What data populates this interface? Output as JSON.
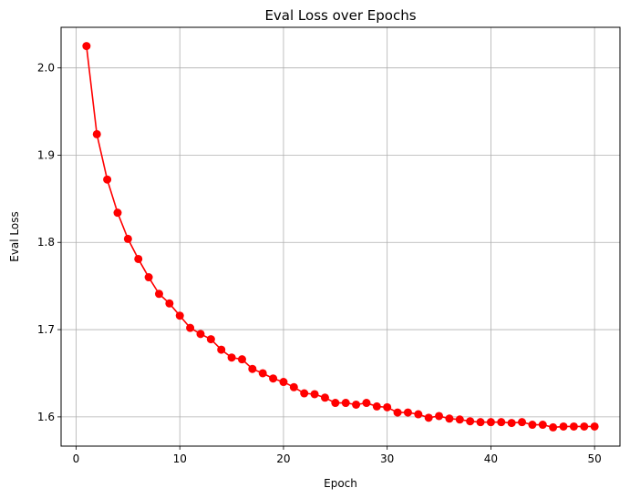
{
  "chart_data": {
    "type": "line",
    "title": "Eval Loss over Epochs",
    "xlabel": "Epoch",
    "ylabel": "Eval Loss",
    "xlim": [
      -1.45,
      52.45
    ],
    "ylim": [
      1.5665,
      2.0465
    ],
    "xticks": [
      0,
      10,
      20,
      30,
      40,
      50
    ],
    "xtick_labels": [
      "0",
      "10",
      "20",
      "30",
      "40",
      "50"
    ],
    "yticks": [
      1.6,
      1.7,
      1.8,
      1.9,
      2.0
    ],
    "ytick_labels": [
      "1.6",
      "1.7",
      "1.8",
      "1.9",
      "2.0"
    ],
    "grid": true,
    "line_color": "#ff0000",
    "marker": "circle",
    "series": [
      {
        "x": [
          1,
          2,
          3,
          4,
          5,
          6,
          7,
          8,
          9,
          10,
          11,
          12,
          13,
          14,
          15,
          16,
          17,
          18,
          19,
          20,
          21,
          22,
          23,
          24,
          25,
          26,
          27,
          28,
          29,
          30,
          31,
          32,
          33,
          34,
          35,
          36,
          37,
          38,
          39,
          40,
          41,
          42,
          43,
          44,
          45,
          46,
          47,
          48,
          49,
          50
        ],
        "values": [
          2.025,
          1.924,
          1.872,
          1.834,
          1.804,
          1.781,
          1.76,
          1.741,
          1.73,
          1.716,
          1.702,
          1.695,
          1.689,
          1.677,
          1.668,
          1.666,
          1.655,
          1.65,
          1.644,
          1.64,
          1.634,
          1.627,
          1.626,
          1.622,
          1.616,
          1.616,
          1.614,
          1.616,
          1.612,
          1.611,
          1.605,
          1.605,
          1.603,
          1.599,
          1.601,
          1.598,
          1.597,
          1.595,
          1.594,
          1.594,
          1.594,
          1.593,
          1.594,
          1.591,
          1.591,
          1.588,
          1.589,
          1.589,
          1.589,
          1.589
        ]
      }
    ]
  }
}
